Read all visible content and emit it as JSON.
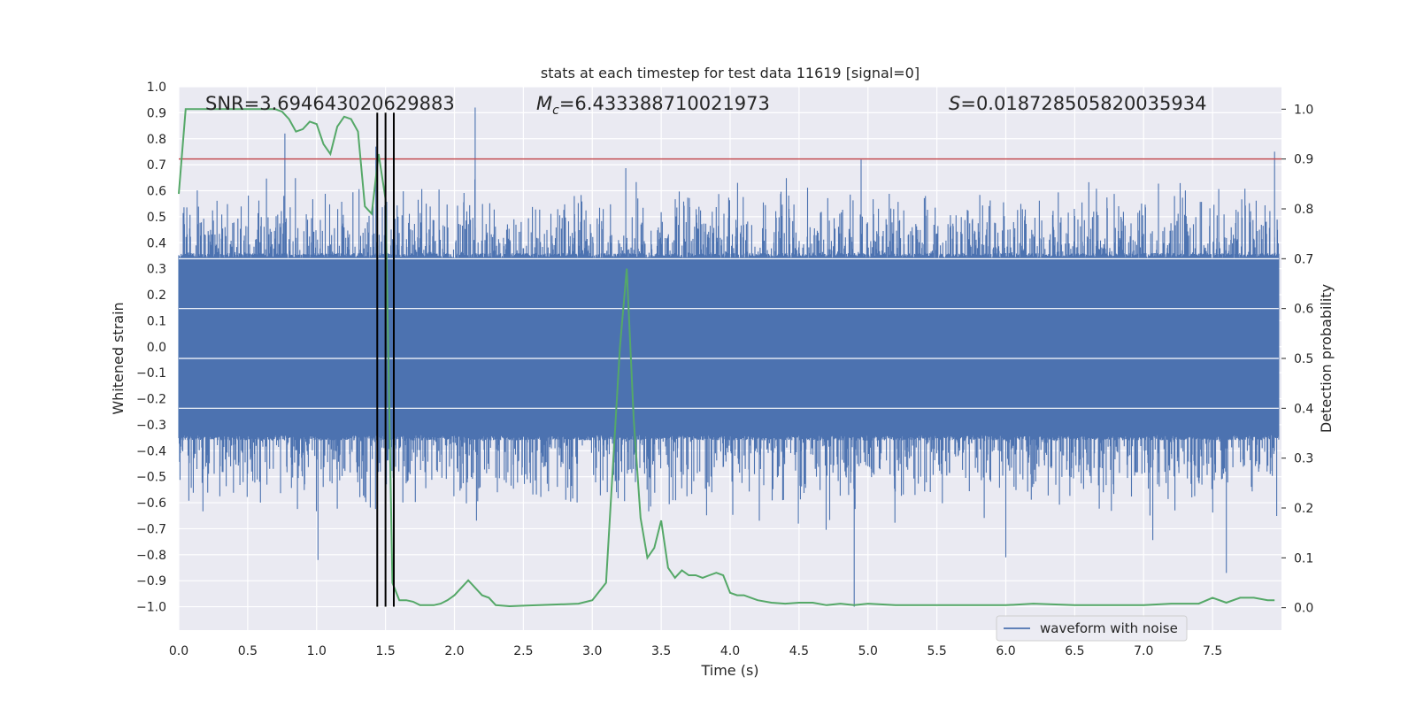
{
  "chart_data": {
    "type": "line",
    "title": "stats at each timestep for test data 11619 [signal=0]",
    "xlabel": "Time (s)",
    "ylabel": "Whitened strain",
    "y2label": "Detection probability",
    "xlim": [
      0.0,
      8.0
    ],
    "ylim": [
      -1.09,
      1.0
    ],
    "y2lim": [
      -0.045,
      1.045
    ],
    "x_ticks": [
      0.0,
      0.5,
      1.0,
      1.5,
      2.0,
      2.5,
      3.0,
      3.5,
      4.0,
      4.5,
      5.0,
      5.5,
      6.0,
      6.5,
      7.0,
      7.5
    ],
    "x_tick_labels": [
      "0.0",
      "0.5",
      "1.0",
      "1.5",
      "2.0",
      "2.5",
      "3.0",
      "3.5",
      "4.0",
      "4.5",
      "5.0",
      "5.5",
      "6.0",
      "6.5",
      "7.0",
      "7.5"
    ],
    "y_ticks": [
      1.0,
      0.9,
      0.8,
      0.7,
      0.6,
      0.5,
      0.4,
      0.3,
      0.2,
      0.1,
      0.0,
      -0.1,
      -0.2,
      -0.3,
      -0.4,
      -0.5,
      -0.6,
      -0.7,
      -0.8,
      -0.9,
      -1.0
    ],
    "y_tick_labels": [
      "1.0",
      "0.9",
      "0.8",
      "0.7",
      "0.6",
      "0.5",
      "0.4",
      "0.3",
      "0.2",
      "0.1",
      "0.0",
      "−0.1",
      "−0.2",
      "−0.3",
      "−0.4",
      "−0.5",
      "−0.6",
      "−0.7",
      "−0.8",
      "−0.9",
      "−1.0"
    ],
    "y2_ticks": [
      1.0,
      0.9,
      0.8,
      0.7,
      0.6,
      0.5,
      0.4,
      0.3,
      0.2,
      0.1,
      0.0
    ],
    "y2_tick_labels": [
      "1.0",
      "0.9",
      "0.8",
      "0.7",
      "0.6",
      "0.5",
      "0.4",
      "0.3",
      "0.2",
      "0.1",
      "0.0"
    ],
    "annotations": {
      "snr": "SNR=3.694643020629883",
      "mc_symbol": "M",
      "mc_subscript": "c",
      "mc_value": "=6.433388710021973",
      "s_symbol": "S",
      "s_value": "=0.018728505820035934"
    },
    "legend": {
      "label": "waveform with noise",
      "location": "lower-right"
    },
    "threshold": {
      "value": 0.9,
      "axis": "right",
      "color": "#c44e52"
    },
    "markers": {
      "x": [
        1.44,
        1.5,
        1.56
      ],
      "color": "#000000"
    },
    "waveform": {
      "name": "waveform with noise",
      "color": "#4c72b0",
      "t_range": [
        0.0,
        7.98
      ],
      "amplitude_typical": [
        -0.35,
        0.35
      ],
      "peaks": [
        {
          "x": 0.77,
          "y": 0.82
        },
        {
          "x": 2.15,
          "y": 0.92
        },
        {
          "x": 1.43,
          "y": 0.77
        },
        {
          "x": 4.95,
          "y": 0.72
        },
        {
          "x": 7.95,
          "y": 0.75
        },
        {
          "x": 1.01,
          "y": -0.82
        },
        {
          "x": 4.9,
          "y": -1.0
        },
        {
          "x": 7.6,
          "y": -0.87
        },
        {
          "x": 6.0,
          "y": -0.81
        }
      ]
    },
    "detection_probability": {
      "name": "detection probability",
      "color": "#55a868",
      "axis": "right",
      "x": [
        0.0,
        0.05,
        0.1,
        0.2,
        0.3,
        0.4,
        0.5,
        0.6,
        0.7,
        0.75,
        0.8,
        0.85,
        0.9,
        0.95,
        1.0,
        1.05,
        1.1,
        1.15,
        1.2,
        1.25,
        1.3,
        1.35,
        1.4,
        1.45,
        1.5,
        1.55,
        1.6,
        1.65,
        1.7,
        1.75,
        1.8,
        1.85,
        1.9,
        1.95,
        2.0,
        2.1,
        2.2,
        2.25,
        2.3,
        2.35,
        2.4,
        2.5,
        2.7,
        2.9,
        3.0,
        3.1,
        3.2,
        3.25,
        3.3,
        3.35,
        3.4,
        3.45,
        3.5,
        3.55,
        3.6,
        3.65,
        3.7,
        3.75,
        3.8,
        3.85,
        3.9,
        3.95,
        4.0,
        4.05,
        4.1,
        4.15,
        4.2,
        4.3,
        4.4,
        4.5,
        4.6,
        4.7,
        4.8,
        4.9,
        5.0,
        5.2,
        5.5,
        6.0,
        6.2,
        6.5,
        6.8,
        7.0,
        7.2,
        7.4,
        7.5,
        7.6,
        7.7,
        7.8,
        7.9,
        7.95
      ],
      "y": [
        0.83,
        1.0,
        1.0,
        1.0,
        1.0,
        1.0,
        1.0,
        1.0,
        1.0,
        0.995,
        0.98,
        0.955,
        0.96,
        0.975,
        0.97,
        0.93,
        0.91,
        0.965,
        0.985,
        0.98,
        0.955,
        0.805,
        0.79,
        0.91,
        0.82,
        0.05,
        0.015,
        0.015,
        0.012,
        0.005,
        0.005,
        0.005,
        0.008,
        0.015,
        0.025,
        0.055,
        0.025,
        0.02,
        0.005,
        0.004,
        0.003,
        0.004,
        0.006,
        0.008,
        0.015,
        0.05,
        0.52,
        0.68,
        0.38,
        0.18,
        0.1,
        0.12,
        0.175,
        0.08,
        0.06,
        0.075,
        0.065,
        0.065,
        0.06,
        0.065,
        0.07,
        0.065,
        0.03,
        0.025,
        0.025,
        0.02,
        0.015,
        0.01,
        0.008,
        0.01,
        0.01,
        0.005,
        0.008,
        0.005,
        0.008,
        0.005,
        0.005,
        0.005,
        0.008,
        0.005,
        0.005,
        0.005,
        0.008,
        0.008,
        0.02,
        0.01,
        0.02,
        0.02,
        0.015,
        0.015
      ],
      "y_scaled_note": "values in detection probability units"
    }
  }
}
